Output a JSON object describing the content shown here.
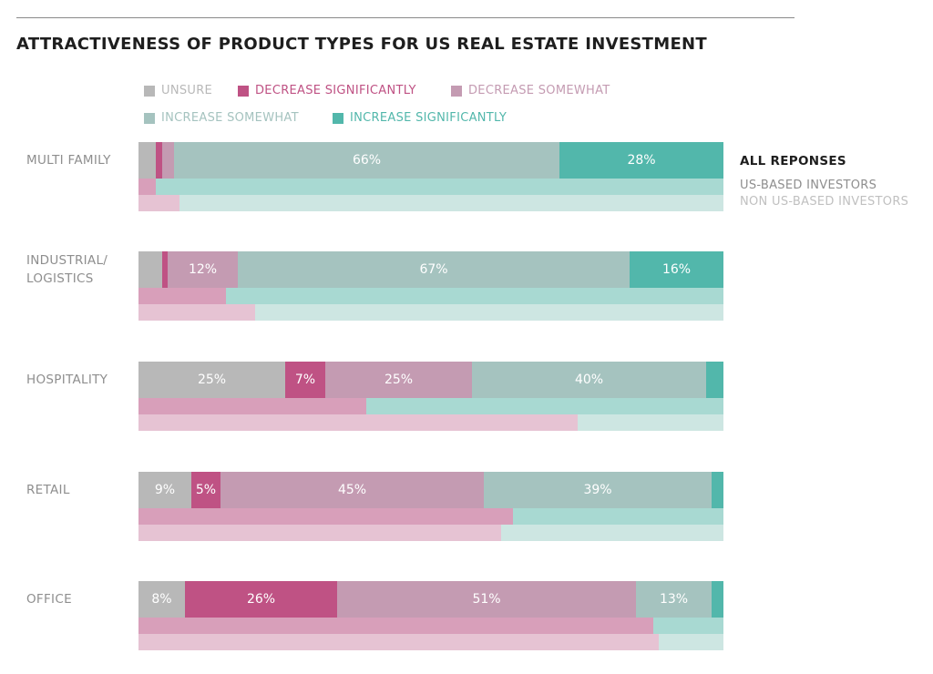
{
  "chart_data": {
    "type": "bar",
    "title": "ATTRACTIVENESS OF PRODUCT TYPES FOR US REAL ESTATE INVESTMENT",
    "series_names": [
      "UNSURE",
      "DECREASE SIGNIFICANTLY",
      "DECREASE SOMEWHAT",
      "INCREASE SOMEWHAT",
      "INCREASE SIGNIFICANTLY"
    ],
    "colors": {
      "all": [
        "#b8b8b8",
        "#bf5284",
        "#c49bb2",
        "#a5c3bf",
        "#52b7ab"
      ],
      "us": [
        "#d89fba",
        "#d89fba",
        "#d89fba",
        "#a8d9d2",
        "#a8d9d2"
      ],
      "nonus": [
        "#e6c3d3",
        "#e6c3d3",
        "#e6c3d3",
        "#cde6e2",
        "#cde6e2"
      ]
    },
    "row_labels": [
      "ALL REPONSES",
      "US-BASED INVESTORS",
      "NON US-BASED INVESTORS"
    ],
    "categories": [
      {
        "name": "MULTI FAMILY",
        "label_lines": [
          "MULTI FAMILY"
        ],
        "all": [
          3,
          1,
          2,
          66,
          28
        ],
        "labels": [
          "",
          "",
          "",
          "66%",
          "28%"
        ],
        "us_decrease": 3,
        "nonus_decrease": 7
      },
      {
        "name": "INDUSTRIAL/ LOGISTICS",
        "label_lines": [
          "INDUSTRIAL/",
          "LOGISTICS"
        ],
        "all": [
          4,
          1,
          12,
          67,
          16
        ],
        "labels": [
          "",
          "",
          "12%",
          "67%",
          "16%"
        ],
        "us_decrease": 15,
        "nonus_decrease": 20
      },
      {
        "name": "HOSPITALITY",
        "label_lines": [
          "HOSPITALITY"
        ],
        "all": [
          25,
          7,
          25,
          40,
          3
        ],
        "labels": [
          "25%",
          "7%",
          "25%",
          "40%",
          ""
        ],
        "us_decrease": 39,
        "nonus_decrease": 75
      },
      {
        "name": "RETAIL",
        "label_lines": [
          "RETAIL"
        ],
        "all": [
          9,
          5,
          45,
          39,
          2
        ],
        "labels": [
          "9%",
          "5%",
          "45%",
          "39%",
          ""
        ],
        "us_decrease": 64,
        "nonus_decrease": 62
      },
      {
        "name": "OFFICE",
        "label_lines": [
          "OFFICE"
        ],
        "all": [
          8,
          26,
          51,
          13,
          2
        ],
        "labels": [
          "8%",
          "26%",
          "51%",
          "13%",
          ""
        ],
        "us_decrease": 88,
        "nonus_decrease": 89
      }
    ]
  }
}
